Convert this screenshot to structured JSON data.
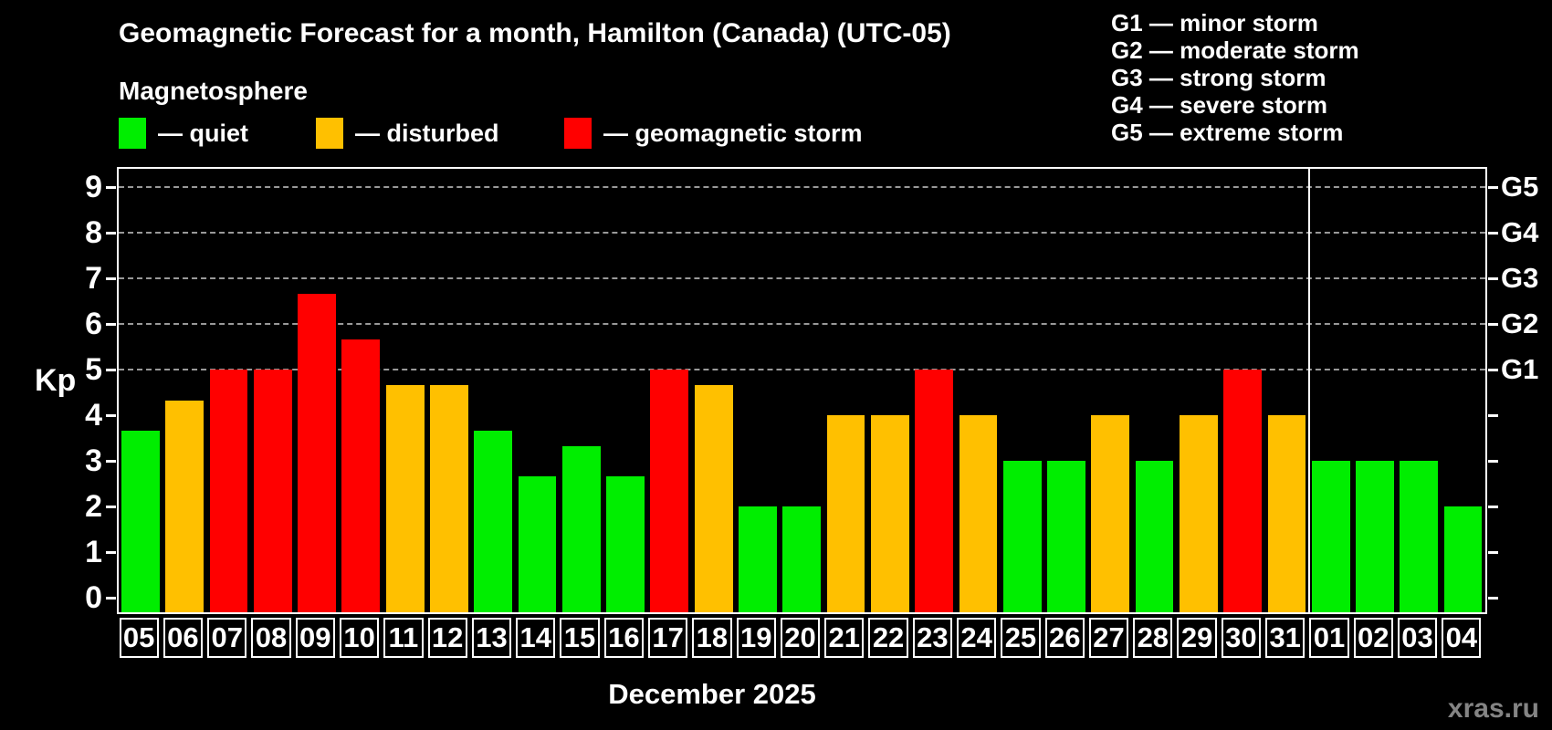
{
  "title": "Geomagnetic Forecast for a month, Hamilton (Canada) (UTC-05)",
  "subtitle": "Magnetosphere",
  "legend": {
    "items": [
      {
        "key": "quiet",
        "label": "— quiet"
      },
      {
        "key": "disturbed",
        "label": "— disturbed"
      },
      {
        "key": "storm",
        "label": "— geomagnetic storm"
      }
    ]
  },
  "g_scale_legend": [
    "G1 — minor storm",
    "G2 — moderate storm",
    "G3 — strong storm",
    "G4 — severe storm",
    "G5 — extreme storm"
  ],
  "colors": {
    "quiet": "#00ee00",
    "disturbed": "#ffc000",
    "storm": "#ff0000",
    "grid": "#999999",
    "axis": "#ffffff",
    "background": "#000000",
    "watermark_text": "#848484"
  },
  "footer": {
    "caption": "December 2025",
    "watermark": "xras.ru"
  },
  "chart_data": {
    "type": "bar",
    "title": "Geomagnetic Forecast for a month, Hamilton (Canada) (UTC-05)",
    "xlabel": "December 2025",
    "ylabel": "Kp",
    "ylim": [
      0,
      9.4
    ],
    "grid": "dashed horizontal at Kp 5-9",
    "y_ticks": [
      "0",
      "1",
      "2",
      "3",
      "4",
      "5",
      "6",
      "7",
      "8",
      "9"
    ],
    "right_axis_labels": [
      {
        "kp": 5,
        "label": "G1"
      },
      {
        "kp": 6,
        "label": "G2"
      },
      {
        "kp": 7,
        "label": "G3"
      },
      {
        "kp": 8,
        "label": "G4"
      },
      {
        "kp": 9,
        "label": "G5"
      }
    ],
    "grid_kp_levels": [
      5,
      6,
      7,
      8,
      9
    ],
    "month_separator_after_index": 26,
    "days": [
      {
        "day": "05",
        "kp": 3.67,
        "status": "quiet"
      },
      {
        "day": "06",
        "kp": 4.33,
        "status": "disturbed"
      },
      {
        "day": "07",
        "kp": 5.0,
        "status": "storm"
      },
      {
        "day": "08",
        "kp": 5.0,
        "status": "storm"
      },
      {
        "day": "09",
        "kp": 6.67,
        "status": "storm"
      },
      {
        "day": "10",
        "kp": 5.67,
        "status": "storm"
      },
      {
        "day": "11",
        "kp": 4.67,
        "status": "disturbed"
      },
      {
        "day": "12",
        "kp": 4.67,
        "status": "disturbed"
      },
      {
        "day": "13",
        "kp": 3.67,
        "status": "quiet"
      },
      {
        "day": "14",
        "kp": 2.67,
        "status": "quiet"
      },
      {
        "day": "15",
        "kp": 3.33,
        "status": "quiet"
      },
      {
        "day": "16",
        "kp": 2.67,
        "status": "quiet"
      },
      {
        "day": "17",
        "kp": 5.0,
        "status": "storm"
      },
      {
        "day": "18",
        "kp": 4.67,
        "status": "disturbed"
      },
      {
        "day": "19",
        "kp": 2.0,
        "status": "quiet"
      },
      {
        "day": "20",
        "kp": 2.0,
        "status": "quiet"
      },
      {
        "day": "21",
        "kp": 4.0,
        "status": "disturbed"
      },
      {
        "day": "22",
        "kp": 4.0,
        "status": "disturbed"
      },
      {
        "day": "23",
        "kp": 5.0,
        "status": "storm"
      },
      {
        "day": "24",
        "kp": 4.0,
        "status": "disturbed"
      },
      {
        "day": "25",
        "kp": 3.0,
        "status": "quiet"
      },
      {
        "day": "26",
        "kp": 3.0,
        "status": "quiet"
      },
      {
        "day": "27",
        "kp": 4.0,
        "status": "disturbed"
      },
      {
        "day": "28",
        "kp": 3.0,
        "status": "quiet"
      },
      {
        "day": "29",
        "kp": 4.0,
        "status": "disturbed"
      },
      {
        "day": "30",
        "kp": 5.0,
        "status": "storm"
      },
      {
        "day": "31",
        "kp": 4.0,
        "status": "disturbed"
      },
      {
        "day": "01",
        "kp": 3.0,
        "status": "quiet"
      },
      {
        "day": "02",
        "kp": 3.0,
        "status": "quiet"
      },
      {
        "day": "03",
        "kp": 3.0,
        "status": "quiet"
      },
      {
        "day": "04",
        "kp": 2.0,
        "status": "quiet"
      }
    ]
  }
}
